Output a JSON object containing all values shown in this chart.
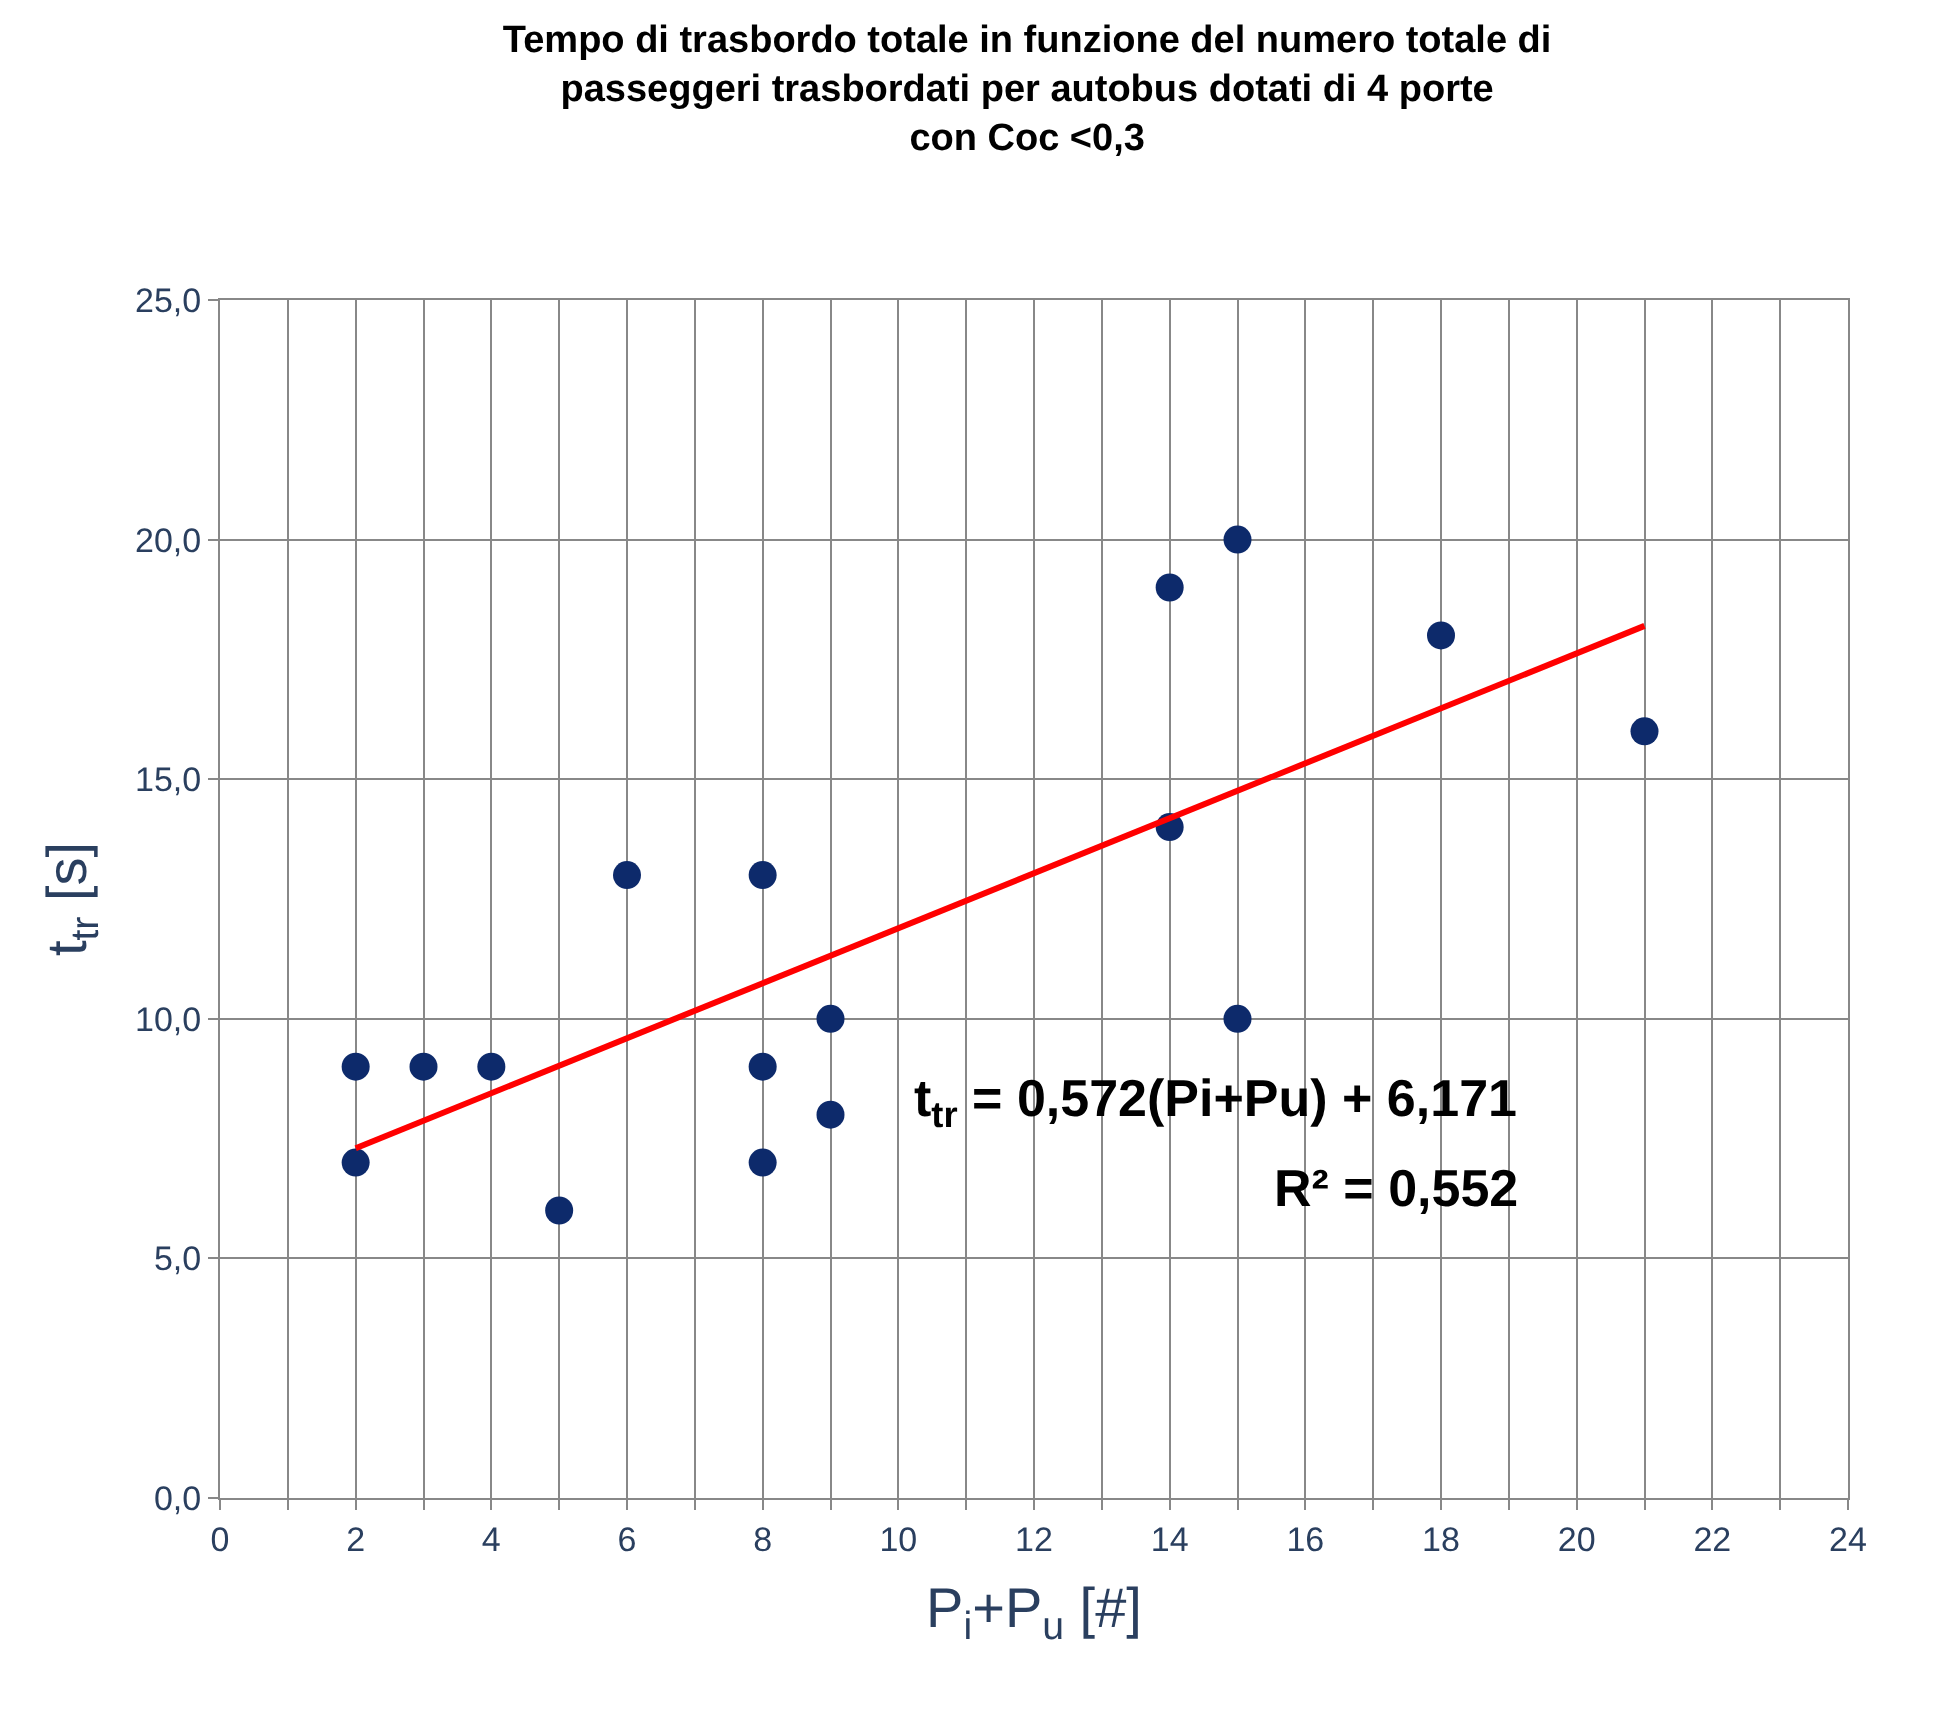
{
  "chart_data": {
    "type": "scatter",
    "title": "Tempo di trasbordo totale in funzione del numero totale di\npasseggeri trasbordati per autobus dotati di 4 porte\ncon Coc <0,3",
    "xlabel": "P$_{i}$+P$_{u}$ [#]",
    "ylabel": "t$_{tr}$ [s]",
    "series": [
      {
        "color": "#0d2a6b",
        "marker": "circle",
        "x": [
          2,
          2,
          3,
          4,
          5,
          6,
          8,
          8,
          8,
          9,
          9,
          14,
          14,
          15,
          15,
          18,
          21
        ],
        "values": [
          9,
          7,
          9,
          9,
          6,
          13,
          13,
          9,
          7,
          10,
          8,
          19,
          14,
          20,
          10,
          18,
          16
        ]
      },
      {
        "type": "line",
        "color": "#ff0000",
        "line_style": "solid",
        "x": [
          2,
          21
        ],
        "values": [
          7.3,
          18.2
        ]
      }
    ],
    "annotations": [
      "t$_{tr}$ = 0,572(Pi+Pu) + 6,171",
      "R² = 0,552"
    ],
    "xlim": [
      0,
      24
    ],
    "ylim": [
      0,
      25
    ],
    "xticks": [
      0,
      {
        "value": 1,
        "label": null
      },
      2,
      {
        "value": 3,
        "label": null
      },
      4,
      {
        "value": 5,
        "label": null
      },
      6,
      {
        "value": 7,
        "label": null
      },
      8,
      {
        "value": 9,
        "label": null
      },
      10,
      {
        "value": 11,
        "label": null
      },
      12,
      {
        "value": 13,
        "label": null
      },
      14,
      {
        "value": 15,
        "label": null
      },
      16,
      {
        "value": 17,
        "label": null
      },
      18,
      {
        "value": 19,
        "label": null
      },
      20,
      {
        "value": 21,
        "label": null
      },
      22,
      {
        "value": 23,
        "label": null
      },
      24
    ],
    "yticks": [
      {
        "value": 0,
        "label": "0,0"
      },
      {
        "value": 5,
        "label": "5,0"
      },
      {
        "value": 10,
        "label": "10,0"
      },
      {
        "value": 15,
        "label": "15,0"
      },
      {
        "value": 20,
        "label": "20,0"
      },
      {
        "value": 25,
        "label": "25,0"
      }
    ],
    "grid": true
  }
}
